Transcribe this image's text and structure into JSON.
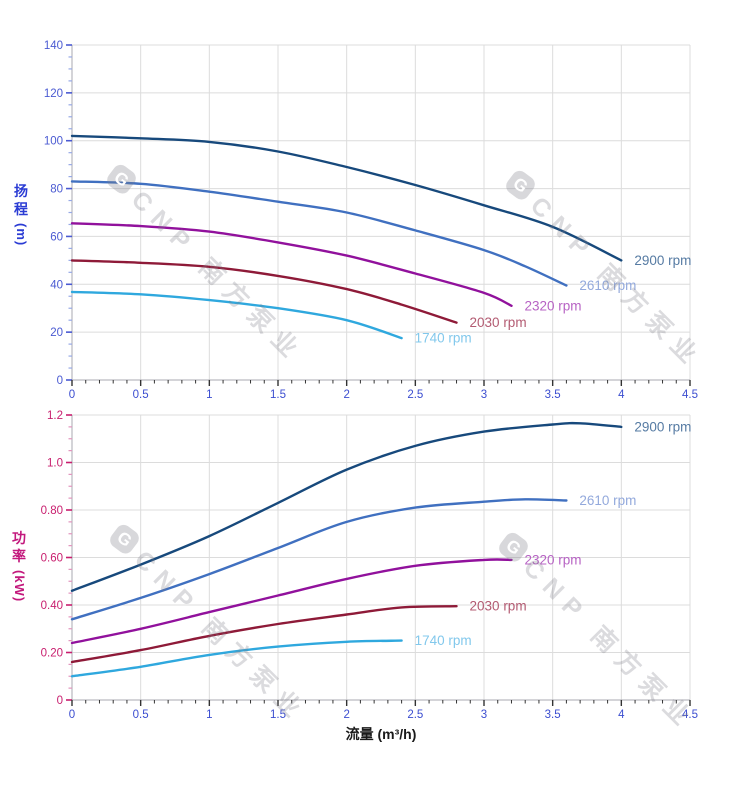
{
  "page": {
    "background": "#ffffff"
  },
  "watermark": {
    "logo_text": "G",
    "brand_text": "CNP 南方泵业"
  },
  "axes": {
    "flow_title": "流量 (m³/h)",
    "head_title_char1": "扬",
    "head_title_char2": "程",
    "head_title_unit": "(m)",
    "power_title_char1": "功",
    "power_title_char2": "率",
    "power_title_unit": "(kW)"
  },
  "colors": {
    "grid": "#dcdcdc",
    "axis_line": "#a8a8b0",
    "x_tick": "#333333",
    "top_y_label": "#4a5ad2",
    "top_y_minor_tick": "#97a9e6",
    "bottom_y_label": "#c81e6e",
    "bottom_y_minor_tick": "#e294bd",
    "x_label": "#3c4ed0"
  },
  "chart_data": [
    {
      "type": "line",
      "title": "",
      "xlabel": "流量 (m³/h)",
      "ylabel": "扬程 (m)",
      "xlim": [
        0,
        4.5
      ],
      "ylim": [
        0,
        140
      ],
      "grid": true,
      "legend_position": "end-of-curve",
      "x_major_step": 0.5,
      "x_minor_step": 0.1,
      "y_major_step": 20,
      "y_minor_step": 5,
      "x_tick_labels": [
        "0",
        "0.5",
        "1",
        "1.5",
        "2",
        "2.5",
        "3",
        "3.5",
        "4",
        "4.5"
      ],
      "y_tick_labels": [
        "0",
        "20",
        "40",
        "60",
        "80",
        "100",
        "120",
        "140"
      ],
      "y_label_color": "#4a5ad2",
      "y_minor_tick_color": "#97a9e6",
      "series": [
        {
          "name": "2900 rpm",
          "curve_color": "#17497c",
          "label_color": "#567ba3",
          "points": [
            [
              0,
              102
            ],
            [
              0.5,
              101
            ],
            [
              1,
              99.5
            ],
            [
              1.5,
              95.5
            ],
            [
              2,
              89
            ],
            [
              2.5,
              81.5
            ],
            [
              3,
              73
            ],
            [
              3.5,
              64
            ],
            [
              4,
              50
            ]
          ]
        },
        {
          "name": "2610 rpm",
          "curve_color": "#4070c0",
          "label_color": "#93a9dc",
          "points": [
            [
              0,
              83
            ],
            [
              0.5,
              82
            ],
            [
              1,
              78.7
            ],
            [
              1.5,
              74.5
            ],
            [
              2,
              70
            ],
            [
              2.5,
              62.5
            ],
            [
              3,
              54.3
            ],
            [
              3.3,
              47.5
            ],
            [
              3.6,
              39.5
            ]
          ]
        },
        {
          "name": "2320 rpm",
          "curve_color": "#91119c",
          "label_color": "#b763c4",
          "points": [
            [
              0,
              65.5
            ],
            [
              0.5,
              64.3
            ],
            [
              1,
              62
            ],
            [
              1.5,
              57.5
            ],
            [
              2,
              52
            ],
            [
              2.5,
              44.5
            ],
            [
              3,
              36.4
            ],
            [
              3.2,
              31
            ]
          ]
        },
        {
          "name": "2030 rpm",
          "curve_color": "#8e1a38",
          "label_color": "#b35b72",
          "points": [
            [
              0,
              50
            ],
            [
              0.5,
              49
            ],
            [
              1,
              47.3
            ],
            [
              1.5,
              43.5
            ],
            [
              2,
              38
            ],
            [
              2.4,
              31.5
            ],
            [
              2.8,
              24
            ]
          ]
        },
        {
          "name": "1740 rpm",
          "curve_color": "#2fa8de",
          "label_color": "#82c8ec",
          "points": [
            [
              0,
              36.8
            ],
            [
              0.5,
              35.8
            ],
            [
              1,
              33.4
            ],
            [
              1.5,
              30
            ],
            [
              2,
              25
            ],
            [
              2.4,
              17.5
            ]
          ]
        }
      ]
    },
    {
      "type": "line",
      "title": "",
      "xlabel": "流量 (m³/h)",
      "ylabel": "功率 (kW)",
      "xlim": [
        0,
        4.5
      ],
      "ylim": [
        0,
        1.2
      ],
      "grid": true,
      "legend_position": "end-of-curve",
      "x_major_step": 0.5,
      "x_minor_step": 0.1,
      "y_major_step": 0.2,
      "y_minor_step": 0.05,
      "x_tick_labels": [
        "0",
        "0.5",
        "1",
        "1.5",
        "2",
        "2.5",
        "3",
        "3.5",
        "4",
        "4.5"
      ],
      "y_tick_labels": [
        "0",
        "0.20",
        "0.40",
        "0.60",
        "0.80",
        "1.0",
        "1.2"
      ],
      "y_label_color": "#c81e6e",
      "y_minor_tick_color": "#e294bd",
      "series": [
        {
          "name": "2900 rpm",
          "curve_color": "#17497c",
          "label_color": "#567ba3",
          "points": [
            [
              0,
              0.46
            ],
            [
              0.5,
              0.57
            ],
            [
              1,
              0.69
            ],
            [
              1.5,
              0.83
            ],
            [
              2,
              0.97
            ],
            [
              2.5,
              1.07
            ],
            [
              3,
              1.13
            ],
            [
              3.5,
              1.16
            ],
            [
              3.7,
              1.165
            ],
            [
              4,
              1.15
            ]
          ]
        },
        {
          "name": "2610 rpm",
          "curve_color": "#4070c0",
          "label_color": "#93a9dc",
          "points": [
            [
              0,
              0.34
            ],
            [
              0.5,
              0.43
            ],
            [
              1,
              0.53
            ],
            [
              1.5,
              0.64
            ],
            [
              2,
              0.75
            ],
            [
              2.5,
              0.81
            ],
            [
              3,
              0.835
            ],
            [
              3.3,
              0.845
            ],
            [
              3.6,
              0.84
            ]
          ]
        },
        {
          "name": "2320 rpm",
          "curve_color": "#91119c",
          "label_color": "#b763c4",
          "points": [
            [
              0,
              0.24
            ],
            [
              0.5,
              0.3
            ],
            [
              1,
              0.37
            ],
            [
              1.5,
              0.44
            ],
            [
              2,
              0.51
            ],
            [
              2.5,
              0.565
            ],
            [
              3,
              0.59
            ],
            [
              3.2,
              0.59
            ]
          ]
        },
        {
          "name": "2030 rpm",
          "curve_color": "#8e1a38",
          "label_color": "#b35b72",
          "points": [
            [
              0,
              0.16
            ],
            [
              0.5,
              0.21
            ],
            [
              1,
              0.27
            ],
            [
              1.5,
              0.32
            ],
            [
              2,
              0.36
            ],
            [
              2.4,
              0.39
            ],
            [
              2.8,
              0.395
            ]
          ]
        },
        {
          "name": "1740 rpm",
          "curve_color": "#2fa8de",
          "label_color": "#82c8ec",
          "points": [
            [
              0,
              0.1
            ],
            [
              0.5,
              0.14
            ],
            [
              1,
              0.19
            ],
            [
              1.5,
              0.225
            ],
            [
              2,
              0.245
            ],
            [
              2.4,
              0.25
            ]
          ]
        }
      ]
    }
  ]
}
